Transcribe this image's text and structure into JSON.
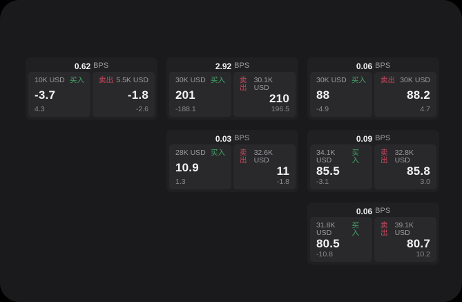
{
  "labels": {
    "buy": "买入",
    "sell": "卖出",
    "unit": "BPS"
  },
  "theme": {
    "outer_bg": "#000000",
    "page_bg": "#1a1a1c",
    "card_bg": "#202022",
    "panel_bg": "#29292b",
    "text_primary": "#f2f2f2",
    "text_secondary": "#9c9ca0",
    "text_muted": "#8b8b8f",
    "buy_color": "#43a469",
    "sell_color": "#c9485e"
  },
  "cards": [
    {
      "bps": "0.62",
      "buy": {
        "size": "10K USD",
        "price": "-3.7",
        "delta": "4.3"
      },
      "sell": {
        "size": "5.5K USD",
        "price": "-1.8",
        "delta": "-2.6"
      }
    },
    {
      "bps": "2.92",
      "buy": {
        "size": "30K USD",
        "price": "201",
        "delta": "-188.1"
      },
      "sell": {
        "size": "30.1K USD",
        "price": "210",
        "delta": "196.5"
      }
    },
    {
      "bps": "0.06",
      "buy": {
        "size": "30K USD",
        "price": "88",
        "delta": "-4.9"
      },
      "sell": {
        "size": "30K USD",
        "price": "88.2",
        "delta": "4.7"
      }
    },
    {
      "bps": "0.03",
      "buy": {
        "size": "28K USD",
        "price": "10.9",
        "delta": "1.3"
      },
      "sell": {
        "size": "32.6K USD",
        "price": "11",
        "delta": "-1.8"
      }
    },
    {
      "bps": "0.09",
      "buy": {
        "size": "34.1K USD",
        "price": "85.5",
        "delta": "-3.1"
      },
      "sell": {
        "size": "32.8K USD",
        "price": "85.8",
        "delta": "3.0"
      }
    },
    {
      "bps": "0.06",
      "buy": {
        "size": "31.8K USD",
        "price": "80.5",
        "delta": "-10.8"
      },
      "sell": {
        "size": "39.1K USD",
        "price": "80.7",
        "delta": "10.2"
      }
    }
  ]
}
